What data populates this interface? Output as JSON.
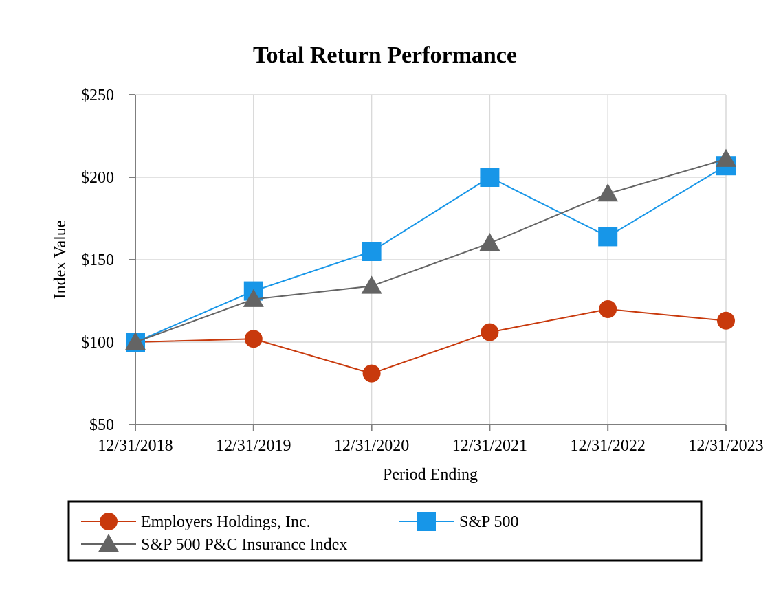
{
  "chart_data": {
    "type": "line",
    "title": "Total Return Performance",
    "xlabel": "Period Ending",
    "ylabel": "Index Value",
    "categories": [
      "12/31/2018",
      "12/31/2019",
      "12/31/2020",
      "12/31/2021",
      "12/31/2022",
      "12/31/2023"
    ],
    "y_ticks": [
      "$50",
      "$100",
      "$150",
      "$200",
      "$250"
    ],
    "ylim": [
      50,
      250
    ],
    "grid": true,
    "legend_position": "bottom",
    "series": [
      {
        "name": "Employers Holdings, Inc.",
        "values": [
          100,
          102,
          81,
          106,
          120,
          113
        ],
        "color": "#c8390c",
        "marker": "circle"
      },
      {
        "name": "S&P 500",
        "values": [
          100,
          131,
          155,
          200,
          164,
          207
        ],
        "color": "#1796e8",
        "marker": "square"
      },
      {
        "name": "S&P 500 P&C Insurance Index",
        "values": [
          100,
          126,
          134,
          160,
          190,
          211
        ],
        "color": "#646464",
        "marker": "triangle"
      }
    ]
  }
}
